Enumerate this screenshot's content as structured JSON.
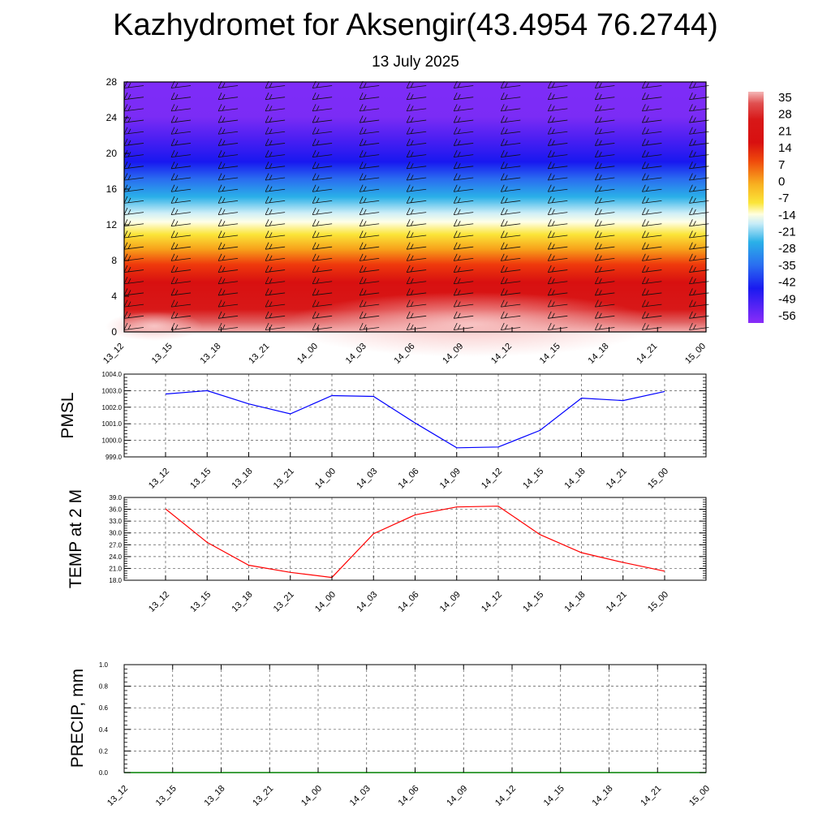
{
  "title": "Kazhydromet for Aksengir(43.4954 76.2744)",
  "subtitle": "13 July 2025",
  "colors": {
    "pmsl_line": "#0000ff",
    "temp_line": "#ff0000",
    "precip_line": "#008000"
  },
  "chart_data": [
    {
      "type": "heatmap",
      "name": "Temperature vs altitude",
      "ylim": [
        0,
        28
      ],
      "yticks": [
        "0",
        "4",
        "8",
        "12",
        "16",
        "20",
        "24",
        "28"
      ],
      "categories": [
        "13_12",
        "13_15",
        "13_18",
        "13_21",
        "14_00",
        "14_03",
        "14_06",
        "14_09",
        "14_12",
        "14_15",
        "14_18",
        "14_21",
        "15_00"
      ],
      "colorbar_labels": [
        "35",
        "28",
        "21",
        "14",
        "7",
        "0",
        "-7",
        "-14",
        "-21",
        "-28",
        "-35",
        "-42",
        "-49",
        "-56"
      ],
      "colormap": "red-orange-yellow-white-cyan-blue-purple",
      "wind_barbs": true
    },
    {
      "type": "line",
      "ylabel": "PMSL",
      "ylim": [
        999.0,
        1004.0
      ],
      "yticks": [
        "999.0",
        "1000.0",
        "1001.0",
        "1002.0",
        "1003.0",
        "1004.0"
      ],
      "categories": [
        "13_12",
        "13_15",
        "13_18",
        "13_21",
        "14_00",
        "14_03",
        "14_06",
        "14_09",
        "14_12",
        "14_15",
        "14_18",
        "14_21",
        "15_00"
      ],
      "values": [
        1002.8,
        1003.0,
        1002.2,
        1001.6,
        1002.7,
        1002.65,
        1001.05,
        999.55,
        999.6,
        1000.6,
        1002.55,
        1002.4,
        1002.95
      ],
      "grid": true
    },
    {
      "type": "line",
      "ylabel": "TEMP at 2 M",
      "ylim": [
        18.0,
        39.0
      ],
      "yticks": [
        "18.0",
        "21.0",
        "24.0",
        "27.0",
        "30.0",
        "33.0",
        "36.0",
        "39.0"
      ],
      "categories": [
        "13_12",
        "13_15",
        "13_18",
        "13_21",
        "14_00",
        "14_03",
        "14_06",
        "14_09",
        "14_12",
        "14_15",
        "14_18",
        "14_21",
        "15_00"
      ],
      "values": [
        36.1,
        27.6,
        21.8,
        20.0,
        18.7,
        29.8,
        34.6,
        36.6,
        36.8,
        29.6,
        25.0,
        22.5,
        20.3
      ],
      "grid": true
    },
    {
      "type": "line",
      "ylabel": "PRECIP, mm",
      "ylim": [
        0.0,
        1.0
      ],
      "yticks": [
        "0.0",
        "0.2",
        "0.4",
        "0.6",
        "0.8",
        "1.0"
      ],
      "categories": [
        "13_12",
        "13_15",
        "13_18",
        "13_21",
        "14_00",
        "14_03",
        "14_06",
        "14_09",
        "14_12",
        "14_15",
        "14_18",
        "14_21",
        "15_00"
      ],
      "values": [
        0,
        0,
        0,
        0,
        0,
        0,
        0,
        0,
        0,
        0,
        0,
        0,
        0
      ],
      "grid": true
    }
  ]
}
